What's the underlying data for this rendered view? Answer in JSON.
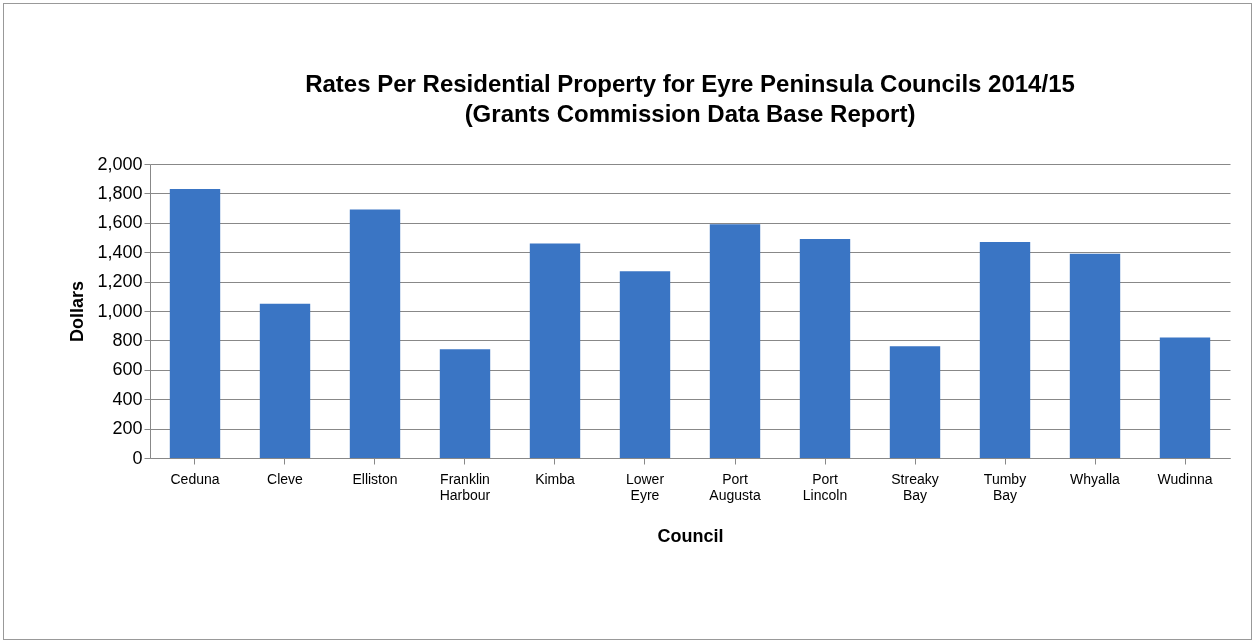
{
  "chart_data": {
    "type": "bar",
    "title": "Rates Per Residential Property for Eyre Peninsula Councils 2014/15",
    "subtitle": "(Grants Commission Data Base Report)",
    "xlabel": "Council",
    "ylabel": "Dollars",
    "categories": [
      "Ceduna",
      "Cleve",
      "Elliston",
      "Franklin Harbour",
      "Kimba",
      "Lower Eyre",
      "Port Augusta",
      "Port Lincoln",
      "Streaky Bay",
      "Tumby Bay",
      "Whyalla",
      "Wudinna"
    ],
    "values": [
      1830,
      1050,
      1690,
      740,
      1460,
      1270,
      1590,
      1490,
      760,
      1470,
      1390,
      820
    ],
    "color": "#3a75c4",
    "ylim": [
      0,
      2000
    ],
    "yticks": [
      0,
      200,
      400,
      600,
      800,
      {
        "value": 1000,
        "label": "1,000"
      },
      {
        "value": 1200,
        "label": "1,200"
      },
      {
        "value": 1400,
        "label": "1,400"
      },
      {
        "value": 1600,
        "label": "1,600"
      },
      {
        "value": 1800,
        "label": "1,800"
      },
      {
        "value": 2000,
        "label": "2,000"
      }
    ],
    "grid": "y"
  }
}
